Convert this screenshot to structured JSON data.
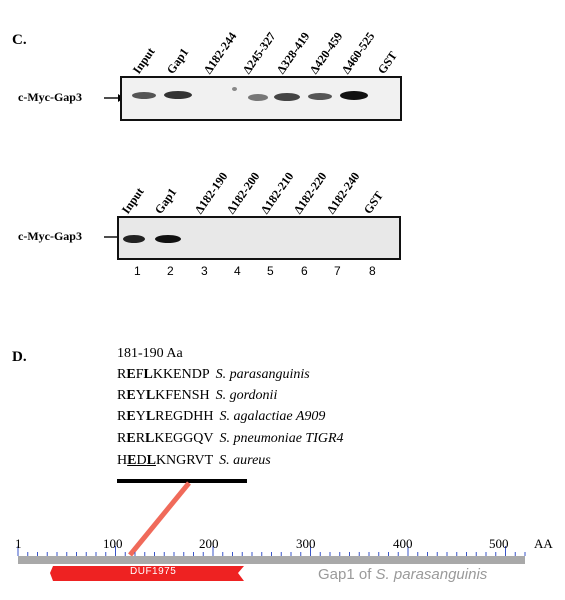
{
  "panel_c": {
    "label": "C.",
    "row_label": "c-Myc-Gap3",
    "blot1": {
      "lanes": [
        "Input",
        "Gap1",
        "Δ182-244",
        "Δ245-327",
        "Δ328-419",
        "Δ420-459",
        "Δ460-525",
        "GST"
      ]
    },
    "blot2": {
      "lanes": [
        "Input",
        "Gap1",
        "Δ182-190",
        "Δ182-200",
        "Δ182-210",
        "Δ182-220",
        "Δ182-240",
        "GST"
      ],
      "lane_numbers": [
        "1",
        "2",
        "3",
        "4",
        "5",
        "6",
        "7",
        "8"
      ]
    }
  },
  "panel_d": {
    "label": "D.",
    "title": "181-190 Aa",
    "sequences": [
      {
        "pre": "R",
        "b1": "E",
        "mid": "F",
        "b2": "L",
        "post": "KKENDP",
        "species": "S. parasanguinis"
      },
      {
        "pre": "R",
        "b1": "E",
        "mid": "Y",
        "b2": "L",
        "post": "KFENSH",
        "species": "S. gordonii"
      },
      {
        "pre": "R",
        "b1": "E",
        "mid": "Y",
        "b2": "L",
        "post": "REGDHH",
        "species": "S. agalactiae A909"
      },
      {
        "pre": "R",
        "b1": "E",
        "mid": "R",
        "b2": "L",
        "post": "KEGGQV",
        "species": "S. pneumoniae TIGR4"
      },
      {
        "pre": "H",
        "b1": "E",
        "mid": "D",
        "b2": "L",
        "post": "KNGRVT",
        "species": "S. aureus"
      }
    ],
    "scale_labels": [
      "1",
      "100",
      "200",
      "300",
      "400",
      "500"
    ],
    "scale_unit": "AA",
    "domain_label": "DUF1975",
    "caption_prefix": "Gap1 of ",
    "caption_species": "S. parasanguinis",
    "colors": {
      "domain": "#ee2222",
      "connector": "#f06a5a",
      "bar": "#a9a9a9",
      "ticks": "#3a55c8"
    }
  }
}
